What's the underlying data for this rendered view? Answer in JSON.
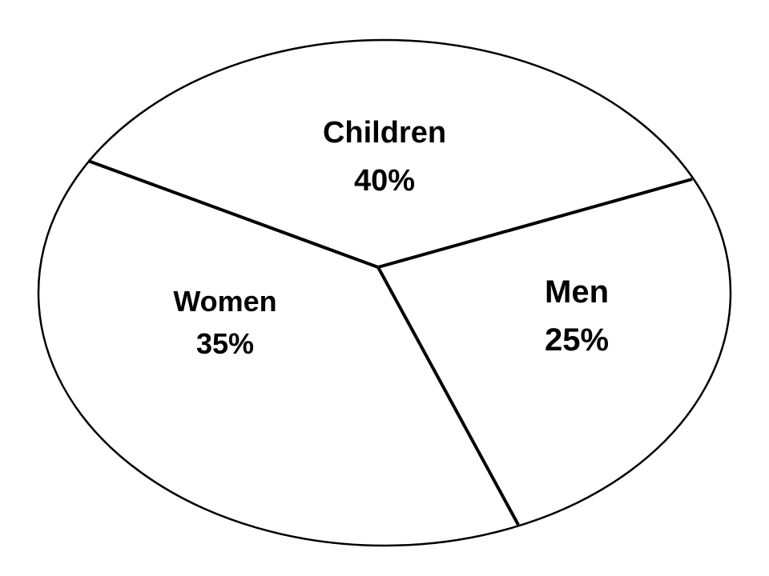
{
  "chart_data": {
    "type": "pie",
    "title": "",
    "slices": [
      {
        "label": "Children",
        "percent_label": "40%",
        "value": 40
      },
      {
        "label": "Men",
        "percent_label": "25%",
        "value": 25
      },
      {
        "label": "Women",
        "percent_label": "35%",
        "value": 35
      }
    ],
    "legend": "none",
    "colors": {
      "fill": "#ffffff",
      "stroke": "#000000"
    }
  }
}
